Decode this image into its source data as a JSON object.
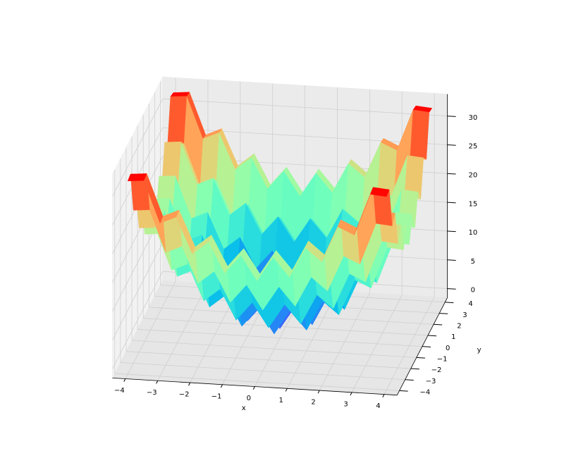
{
  "chart_data": {
    "type": "surface",
    "x_label": "x",
    "y_label": "y",
    "x": [
      -4,
      -3.5,
      -3,
      -2.5,
      -2,
      -1.5,
      -1,
      -0.5,
      0,
      0.5,
      1,
      1.5,
      2,
      2.5,
      3,
      3.5,
      4
    ],
    "y": [
      -4,
      -3.5,
      -3,
      -2.5,
      -2,
      -1.5,
      -1,
      -0.5,
      0,
      0.5,
      1,
      1.5,
      2,
      2.5,
      3,
      3.5,
      4
    ],
    "z": [
      [
        32,
        32.25,
        25,
        26.25,
        20,
        22.25,
        17,
        20.25,
        16,
        20.25,
        17,
        22.25,
        20,
        26.25,
        25,
        32.25,
        32
      ],
      [
        32.25,
        32.5,
        25.25,
        26.5,
        20.25,
        22.5,
        17.25,
        20.5,
        16.25,
        20.5,
        17.25,
        22.5,
        20.25,
        26.5,
        25.25,
        32.5,
        32.25
      ],
      [
        25,
        25.25,
        18,
        19.25,
        13,
        15.25,
        10,
        13.25,
        9,
        13.25,
        10,
        15.25,
        13,
        19.25,
        18,
        25.25,
        25
      ],
      [
        26.25,
        26.5,
        19.25,
        20.5,
        14.25,
        16.5,
        11.25,
        14.5,
        10.25,
        14.5,
        11.25,
        16.5,
        14.25,
        20.5,
        19.25,
        26.5,
        26.25
      ],
      [
        20,
        20.25,
        13,
        14.25,
        8,
        10.25,
        5,
        8.25,
        4,
        8.25,
        5,
        10.25,
        8,
        14.25,
        13,
        20.25,
        20
      ],
      [
        22.25,
        22.5,
        15.25,
        16.5,
        10.25,
        12.5,
        7.25,
        10.5,
        6.25,
        10.5,
        7.25,
        12.5,
        10.25,
        16.5,
        15.25,
        22.5,
        22.25
      ],
      [
        17,
        17.25,
        10,
        11.25,
        5,
        7.25,
        2,
        5.25,
        1,
        5.25,
        2,
        7.25,
        5,
        11.25,
        10,
        17.25,
        17
      ],
      [
        20.25,
        20.5,
        13.25,
        14.5,
        8.25,
        10.5,
        5.25,
        8.5,
        4.25,
        8.5,
        5.25,
        10.5,
        8.25,
        14.5,
        13.25,
        20.5,
        20.25
      ],
      [
        16,
        16.25,
        9,
        10.25,
        4,
        6.25,
        1,
        4.25,
        0,
        4.25,
        1,
        6.25,
        4,
        10.25,
        9,
        16.25,
        16
      ],
      [
        20.25,
        20.5,
        13.25,
        14.5,
        8.25,
        10.5,
        5.25,
        8.5,
        4.25,
        8.5,
        5.25,
        10.5,
        8.25,
        14.5,
        13.25,
        20.5,
        20.25
      ],
      [
        17,
        17.25,
        10,
        11.25,
        5,
        7.25,
        2,
        5.25,
        1,
        5.25,
        2,
        7.25,
        5,
        11.25,
        10,
        17.25,
        17
      ],
      [
        22.25,
        22.5,
        15.25,
        16.5,
        10.25,
        12.5,
        7.25,
        10.5,
        6.25,
        10.5,
        7.25,
        12.5,
        10.25,
        16.5,
        15.25,
        22.5,
        22.25
      ],
      [
        20,
        20.25,
        13,
        14.25,
        8,
        10.25,
        5,
        8.25,
        4,
        8.25,
        5,
        10.25,
        8,
        14.25,
        13,
        20.25,
        20
      ],
      [
        26.25,
        26.5,
        19.25,
        20.5,
        14.25,
        16.5,
        11.25,
        14.5,
        10.25,
        14.5,
        11.25,
        16.5,
        14.25,
        20.5,
        19.25,
        26.5,
        26.25
      ],
      [
        25,
        25.25,
        18,
        19.25,
        13,
        15.25,
        10,
        13.25,
        9,
        13.25,
        10,
        15.25,
        13,
        19.25,
        18,
        25.25,
        25
      ],
      [
        32.25,
        32.5,
        25.25,
        26.5,
        20.25,
        22.5,
        17.25,
        20.5,
        16.25,
        20.5,
        17.25,
        22.5,
        20.25,
        26.5,
        25.25,
        32.5,
        32.25
      ],
      [
        32,
        32.25,
        25,
        26.25,
        20,
        22.25,
        17,
        20.25,
        16,
        20.25,
        17,
        22.25,
        20,
        26.25,
        25,
        32.25,
        32
      ]
    ],
    "xlim": [
      -4.4,
      4.4
    ],
    "ylim": [
      -4.4,
      4.4
    ],
    "zlim": [
      -1.6,
      33.8
    ],
    "xticks": [
      {
        "value": -4,
        "label": "−4"
      },
      {
        "value": -3,
        "label": "−3"
      },
      {
        "value": -2,
        "label": "−2"
      },
      {
        "value": -1,
        "label": "−1"
      },
      0,
      1,
      2,
      3,
      4
    ],
    "yticks": [
      {
        "value": -4,
        "label": "−4"
      },
      {
        "value": -3,
        "label": "−3"
      },
      {
        "value": -2,
        "label": "−2"
      },
      {
        "value": -1,
        "label": "−1"
      },
      0,
      1,
      2,
      3,
      4
    ],
    "zticks": [
      0,
      5,
      10,
      15,
      20,
      25,
      30
    ],
    "colormap": "rainbow",
    "grid": true
  }
}
